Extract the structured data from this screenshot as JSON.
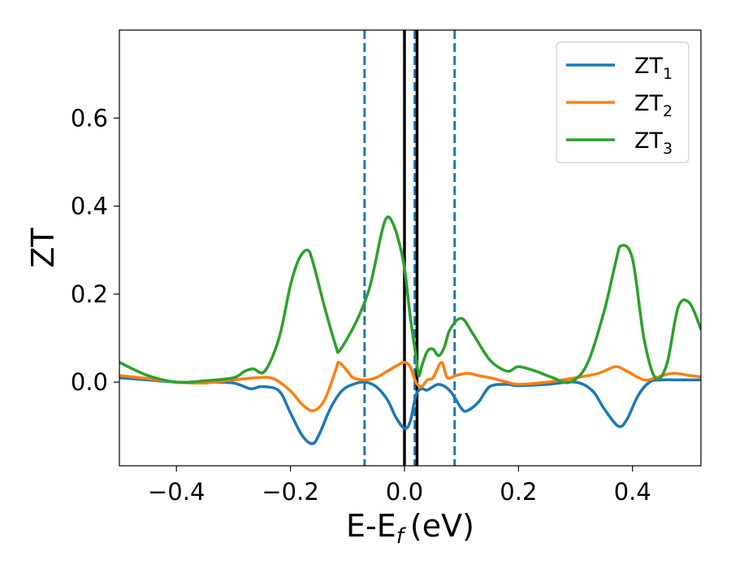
{
  "chart_data": {
    "type": "line",
    "title": "",
    "xlabel": "E-E",
    "xlabel_sub": "f",
    "xlabel_unit": "(eV)",
    "ylabel": "ZT",
    "xlim": [
      -0.5,
      0.52
    ],
    "ylim": [
      -0.19,
      0.8
    ],
    "xticks": [
      -0.4,
      -0.2,
      0.0,
      0.2,
      0.4
    ],
    "xtick_labels": [
      "−0.4",
      "−0.2",
      "0.0",
      "0.2",
      "0.4"
    ],
    "yticks": [
      0.0,
      0.2,
      0.4,
      0.6
    ],
    "ytick_labels": [
      "0.0",
      "0.2",
      "0.4",
      "0.6"
    ],
    "grid": false,
    "legend_position": "top-right",
    "vlines": [
      {
        "x": -0.07,
        "style": "dashed",
        "color": "#1f77b4"
      },
      {
        "x": 0.0,
        "style": "solid",
        "color": "#000000"
      },
      {
        "x": 0.018,
        "style": "dashed",
        "color": "#1f77b4"
      },
      {
        "x": 0.022,
        "style": "solid",
        "color": "#000000"
      },
      {
        "x": 0.088,
        "style": "dashed",
        "color": "#1f77b4"
      }
    ],
    "series": [
      {
        "name": "ZT",
        "name_sub": "1",
        "color": "#1f77b4",
        "x": [
          -0.5,
          -0.45,
          -0.4,
          -0.35,
          -0.3,
          -0.27,
          -0.25,
          -0.22,
          -0.2,
          -0.18,
          -0.162,
          -0.15,
          -0.13,
          -0.11,
          -0.09,
          -0.07,
          -0.05,
          -0.03,
          -0.015,
          0.0,
          0.01,
          0.02,
          0.03,
          0.04,
          0.06,
          0.08,
          0.1,
          0.11,
          0.13,
          0.15,
          0.18,
          0.2,
          0.25,
          0.3,
          0.33,
          0.35,
          0.375,
          0.39,
          0.41,
          0.43,
          0.45,
          0.5,
          0.52
        ],
        "y": [
          0.01,
          0.005,
          0.0,
          0.0,
          -0.002,
          -0.015,
          -0.01,
          -0.02,
          -0.07,
          -0.12,
          -0.14,
          -0.12,
          -0.06,
          -0.02,
          -0.005,
          0.0,
          -0.01,
          -0.04,
          -0.08,
          -0.105,
          -0.09,
          -0.03,
          -0.015,
          -0.018,
          -0.005,
          -0.02,
          -0.06,
          -0.065,
          -0.045,
          -0.01,
          -0.005,
          -0.008,
          -0.005,
          0.0,
          -0.02,
          -0.06,
          -0.1,
          -0.085,
          -0.03,
          0.0,
          0.005,
          0.005,
          0.005
        ]
      },
      {
        "name": "ZT",
        "name_sub": "2",
        "color": "#ff7f0e",
        "x": [
          -0.5,
          -0.45,
          -0.4,
          -0.35,
          -0.3,
          -0.26,
          -0.23,
          -0.2,
          -0.18,
          -0.16,
          -0.14,
          -0.12,
          -0.115,
          -0.1,
          -0.09,
          -0.07,
          -0.05,
          -0.03,
          -0.01,
          0.0,
          0.01,
          0.02,
          0.03,
          0.04,
          0.05,
          0.065,
          0.075,
          0.09,
          0.11,
          0.13,
          0.15,
          0.18,
          0.2,
          0.25,
          0.3,
          0.34,
          0.37,
          0.39,
          0.42,
          0.44,
          0.47,
          0.5,
          0.52
        ],
        "y": [
          0.015,
          0.008,
          0.0,
          -0.002,
          0.005,
          0.01,
          0.008,
          -0.02,
          -0.05,
          -0.065,
          -0.04,
          0.03,
          0.045,
          0.025,
          0.01,
          0.005,
          0.01,
          0.025,
          0.04,
          0.045,
          0.035,
          0.0,
          -0.01,
          0.005,
          0.01,
          0.045,
          0.01,
          0.015,
          0.02,
          0.015,
          0.01,
          0.0,
          -0.005,
          0.0,
          0.01,
          0.02,
          0.035,
          0.025,
          0.005,
          0.01,
          0.02,
          0.015,
          0.012
        ]
      },
      {
        "name": "ZT",
        "name_sub": "3",
        "color": "#2ca02c",
        "x": [
          -0.5,
          -0.45,
          -0.4,
          -0.35,
          -0.3,
          -0.28,
          -0.265,
          -0.245,
          -0.22,
          -0.2,
          -0.185,
          -0.17,
          -0.16,
          -0.14,
          -0.12,
          -0.115,
          -0.1,
          -0.08,
          -0.06,
          -0.04,
          -0.03,
          -0.02,
          -0.01,
          0.0,
          0.01,
          0.02,
          0.025,
          0.03,
          0.04,
          0.05,
          0.06,
          0.07,
          0.08,
          0.1,
          0.12,
          0.15,
          0.18,
          0.2,
          0.23,
          0.26,
          0.29,
          0.32,
          0.35,
          0.37,
          0.38,
          0.4,
          0.42,
          0.44,
          0.46,
          0.48,
          0.5,
          0.52
        ],
        "y": [
          0.045,
          0.015,
          0.0,
          0.003,
          0.01,
          0.025,
          0.03,
          0.025,
          0.1,
          0.22,
          0.28,
          0.3,
          0.27,
          0.17,
          0.08,
          0.07,
          0.1,
          0.15,
          0.22,
          0.34,
          0.375,
          0.36,
          0.32,
          0.26,
          0.15,
          0.06,
          0.015,
          0.035,
          0.07,
          0.075,
          0.06,
          0.08,
          0.12,
          0.145,
          0.11,
          0.05,
          0.025,
          0.035,
          0.025,
          0.01,
          0.0,
          0.04,
          0.16,
          0.27,
          0.31,
          0.28,
          0.1,
          0.01,
          0.04,
          0.17,
          0.18,
          0.12
        ]
      }
    ]
  }
}
